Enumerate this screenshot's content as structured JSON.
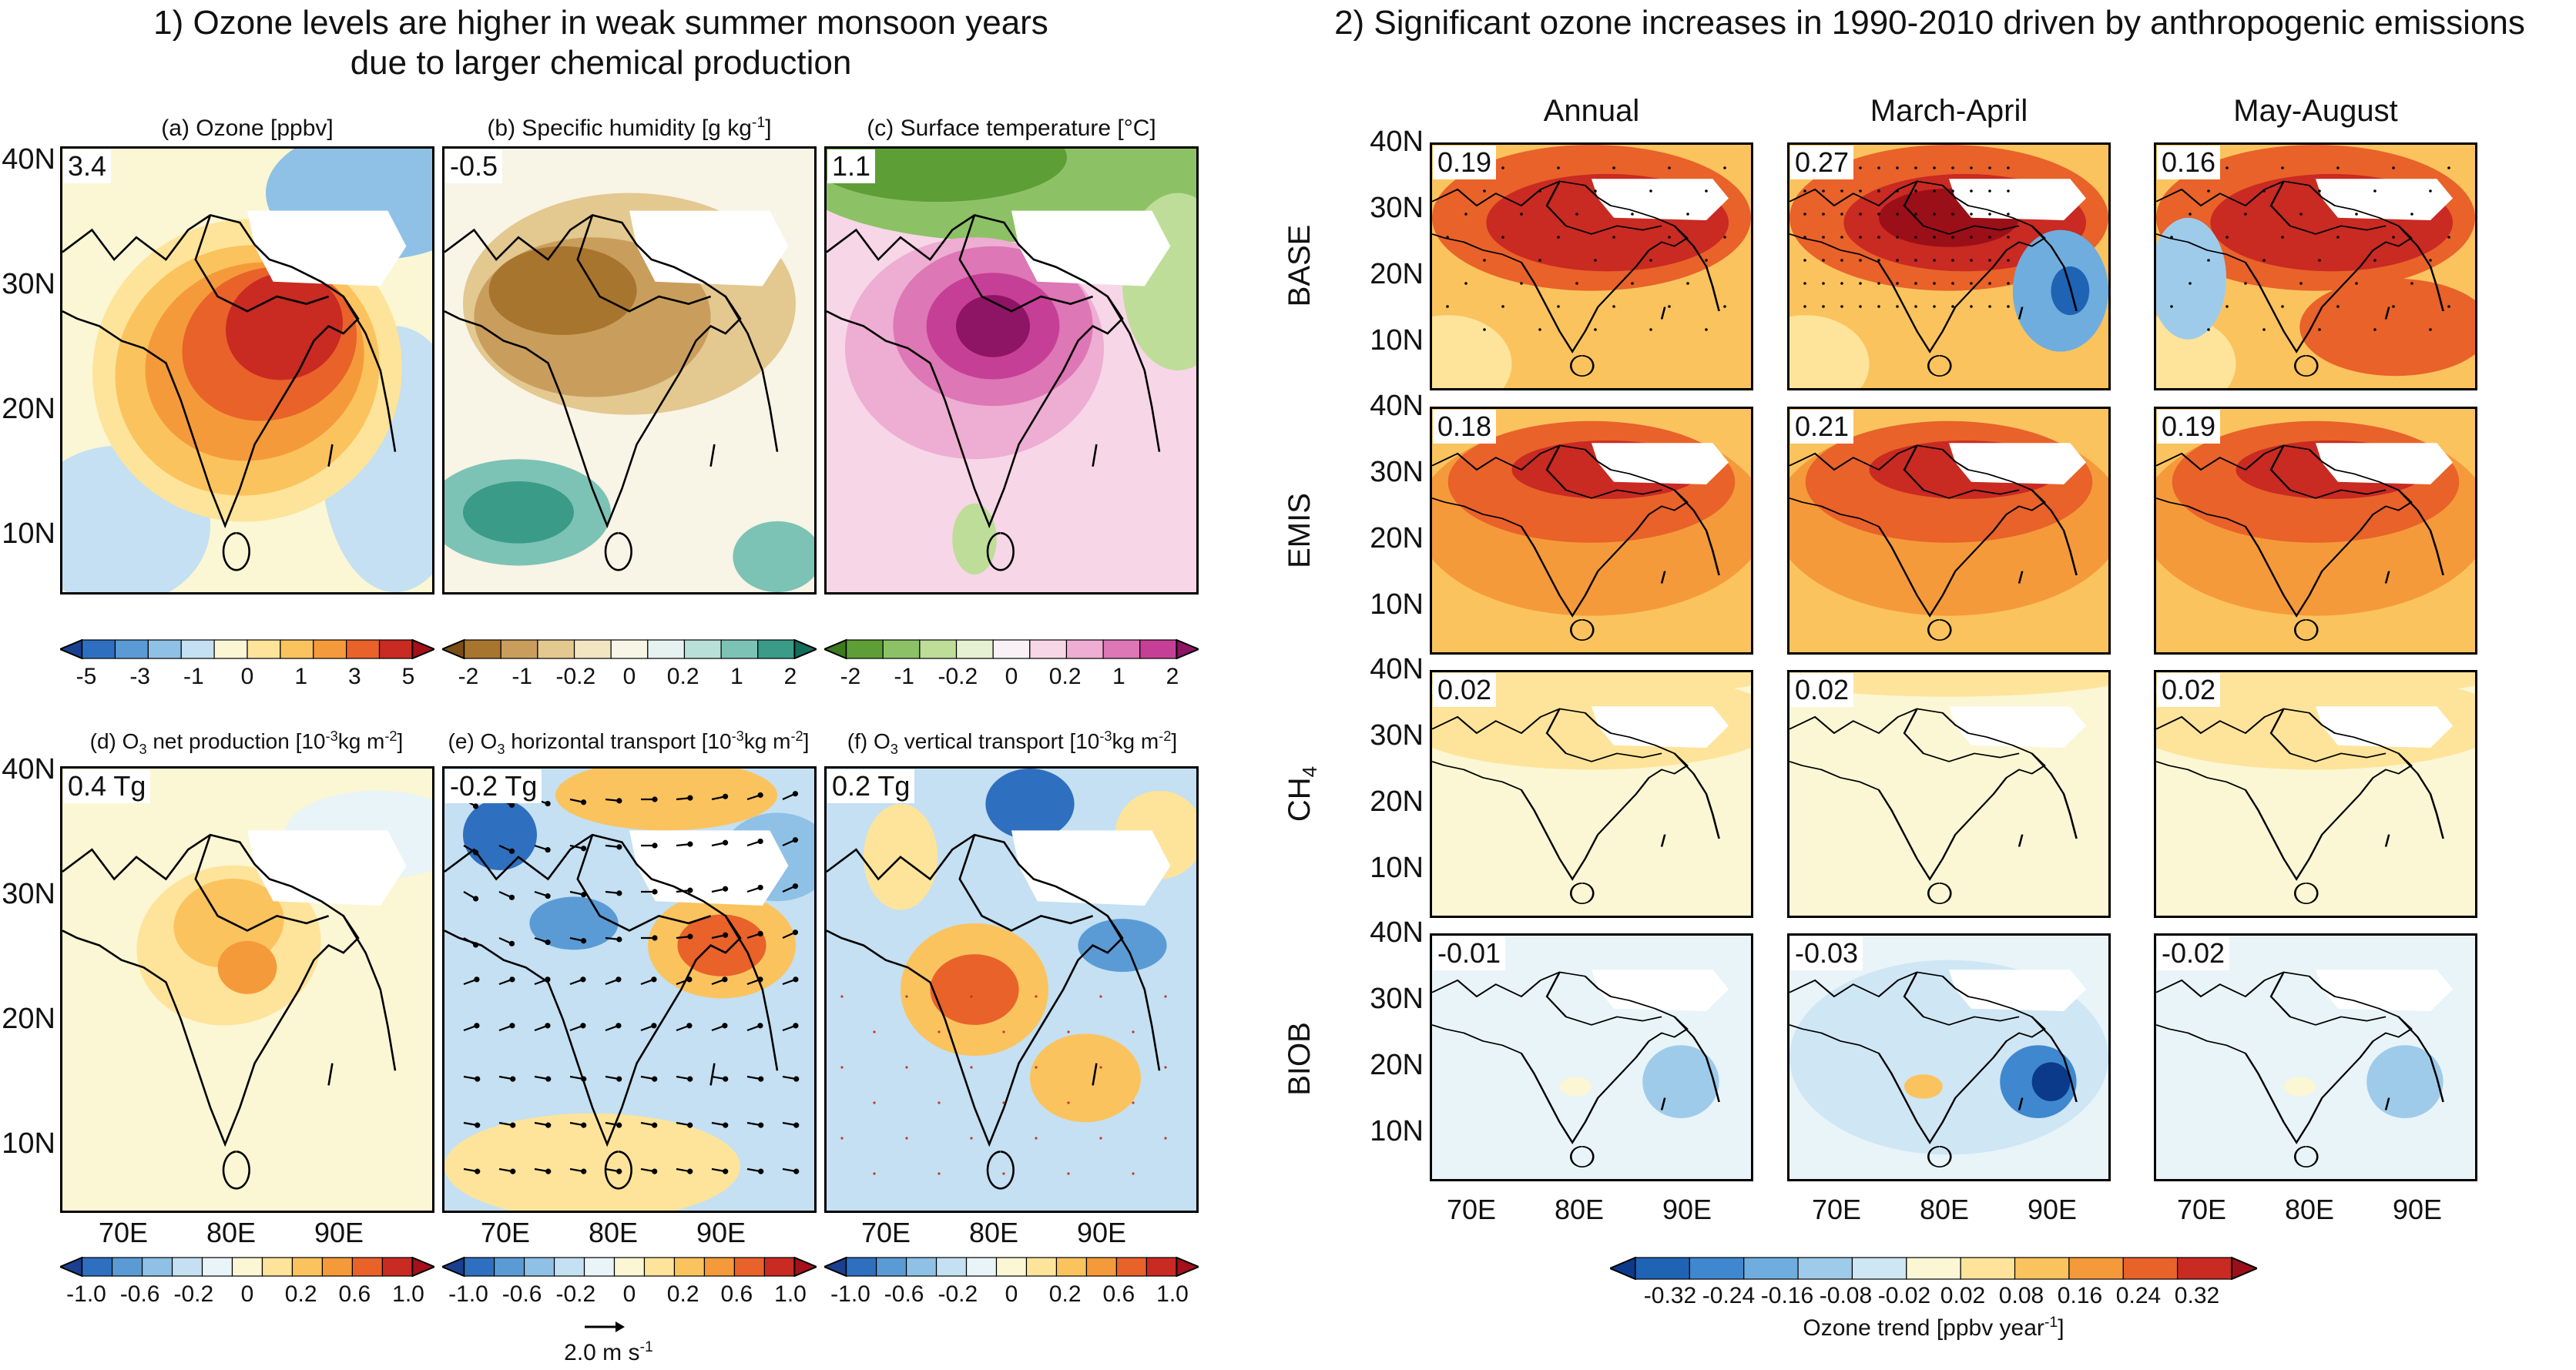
{
  "left": {
    "heading_line1": "1) Ozone levels are higher in weak summer monsoon years",
    "heading_line2": "due to larger chemical production",
    "panels_top": [
      {
        "title": "(a) Ozone [ppbv]",
        "value": "3.4"
      },
      {
        "title": "(b) Specific humidity [g kg",
        "title_sup": "-1",
        "title_end": "]",
        "value": "-0.5"
      },
      {
        "title": "(c) Surface temperature [°C]",
        "value": "1.1"
      }
    ],
    "panels_bottom": [
      {
        "title": "(d) O",
        "sub": "3",
        "title_rest": " net production [10",
        "sup": "-3",
        "title_end": "kg m",
        "sup2": "-2",
        "close": "]",
        "value": "0.4 Tg"
      },
      {
        "title": "(e) O",
        "sub": "3",
        "title_rest": " horizontal transport [10",
        "sup": "-3",
        "title_end": "kg m",
        "sup2": "-2",
        "close": "]",
        "value": "-0.2 Tg"
      },
      {
        "title": "(f) O",
        "sub": "3",
        "title_rest": " vertical transport [10",
        "sup": "-3",
        "title_end": "kg m",
        "sup2": "-2",
        "close": "]",
        "value": "0.2 Tg"
      }
    ],
    "lat_labels": [
      "40N",
      "30N",
      "20N",
      "10N"
    ],
    "lon_labels": [
      "70E",
      "80E",
      "90E"
    ],
    "cbar_a_ticks": [
      "-5",
      "-3",
      "-1",
      "0",
      "1",
      "3",
      "5"
    ],
    "cbar_bc_ticks": [
      "-2",
      "-1",
      "-0.2",
      "0",
      "0.2",
      "1",
      "2"
    ],
    "cbar_def_ticks": [
      "-1.0",
      "-0.6",
      "-0.2",
      "0",
      "0.2",
      "0.6",
      "1.0"
    ],
    "vector_key": "2.0 m s",
    "vector_key_sup": "-1"
  },
  "right": {
    "heading": "2) Significant ozone increases in 1990-2010 driven by anthropogenic emissions",
    "columns": [
      "Annual",
      "March-April",
      "May-August"
    ],
    "rows": [
      {
        "label": "BASE",
        "values": [
          "0.19",
          "0.27",
          "0.16"
        ]
      },
      {
        "label": "EMIS",
        "values": [
          "0.18",
          "0.21",
          "0.19"
        ]
      },
      {
        "label": "CH",
        "label_sub": "4",
        "values": [
          "0.02",
          "0.02",
          "0.02"
        ]
      },
      {
        "label": "BIOB",
        "values": [
          "-0.01",
          "-0.03",
          "-0.02"
        ]
      }
    ],
    "lat_labels": [
      "40N",
      "30N",
      "20N",
      "10N"
    ],
    "lon_labels": [
      "70E",
      "80E",
      "90E"
    ],
    "cbar_ticks": [
      "-0.32",
      "-0.24",
      "-0.16",
      "-0.08",
      "-0.02",
      "0.02",
      "0.08",
      "0.16",
      "0.24",
      "0.32"
    ],
    "cbar_title": "Ozone trend [ppbv year",
    "cbar_title_sup": "-1",
    "cbar_title_end": "]"
  },
  "colors": {
    "div_red_blue": [
      "#1a3f8f",
      "#2f6fbf",
      "#5b9bd5",
      "#8fc1e6",
      "#c4e0f2",
      "#e8f4f8",
      "#fbf6d4",
      "#fde49a",
      "#fbc35e",
      "#f59a3a",
      "#e8622a",
      "#c92a22",
      "#a5101a"
    ],
    "brown_teal": [
      "#7a4e14",
      "#a8752f",
      "#c99e5d",
      "#e3c890",
      "#f2e6c2",
      "#f8f4e6",
      "#e6f2ef",
      "#b9e0d8",
      "#7cc3b5",
      "#3a9b88",
      "#126d5c"
    ],
    "green_pink": [
      "#3b7a1f",
      "#5e9e36",
      "#8cc265",
      "#bedd99",
      "#e5f1d2",
      "#f9f1f5",
      "#f7d6e7",
      "#eeadd2",
      "#dd77b5",
      "#c63f96",
      "#8e1466"
    ]
  }
}
